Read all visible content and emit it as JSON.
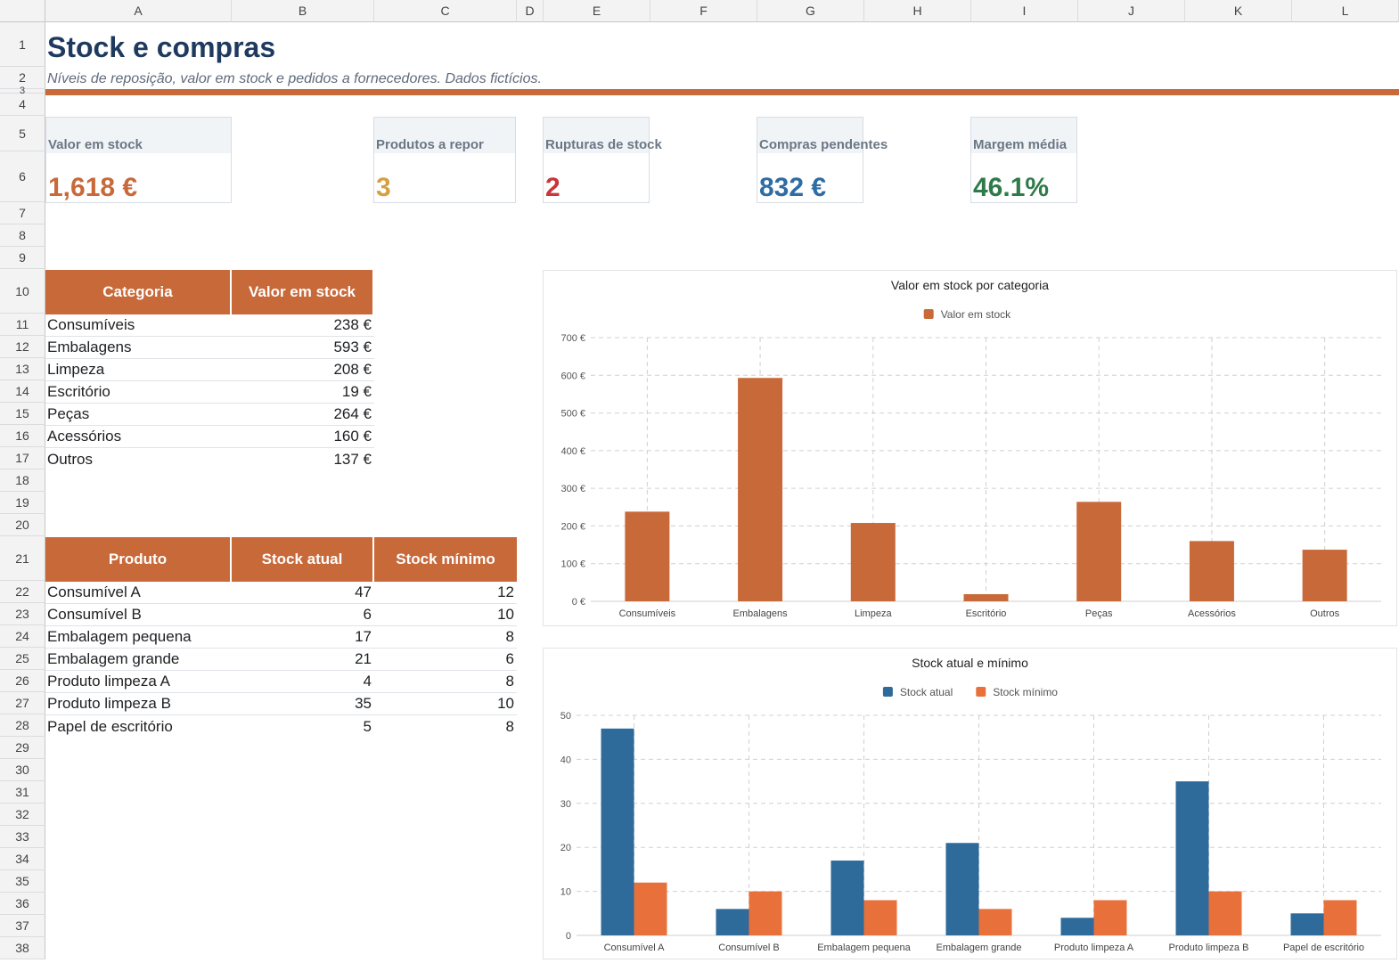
{
  "columns": [
    "A",
    "B",
    "C",
    "D",
    "E",
    "F",
    "G",
    "H",
    "I",
    "J",
    "K",
    "L"
  ],
  "rows": [
    "1",
    "2",
    "3",
    "4",
    "5",
    "6",
    "7",
    "8",
    "9",
    "10",
    "11",
    "12",
    "13",
    "14",
    "15",
    "16",
    "17",
    "18",
    "19",
    "20",
    "21",
    "22",
    "23",
    "24",
    "25",
    "26",
    "27",
    "28",
    "29",
    "30",
    "31",
    "32",
    "33",
    "34",
    "35",
    "36",
    "37",
    "38"
  ],
  "header": {
    "title": "Stock e compras",
    "subtitle": "Níveis de reposição, valor em stock e pedidos a fornecedores. Dados fictícios."
  },
  "kpis": [
    {
      "label": "Valor em stock",
      "value": "1,618 €",
      "color": "#c8693a"
    },
    {
      "label": "Produtos a repor",
      "value": "3",
      "color": "#d4a041"
    },
    {
      "label": "Rupturas de stock",
      "value": "2",
      "color": "#c9353a"
    },
    {
      "label": "Compras pendentes",
      "value": "832 €",
      "color": "#2e6ca4"
    },
    {
      "label": "Margem média",
      "value": "46.1%",
      "color": "#2f7a4a"
    }
  ],
  "category_table": {
    "headers": [
      "Categoria",
      "Valor em stock"
    ],
    "rows": [
      [
        "Consumíveis",
        "238 €"
      ],
      [
        "Embalagens",
        "593 €"
      ],
      [
        "Limpeza",
        "208 €"
      ],
      [
        "Escritório",
        "19 €"
      ],
      [
        "Peças",
        "264 €"
      ],
      [
        "Acessórios",
        "160 €"
      ],
      [
        "Outros",
        "137 €"
      ]
    ]
  },
  "product_table": {
    "headers": [
      "Produto",
      "Stock atual",
      "Stock mínimo"
    ],
    "rows": [
      [
        "Consumível A",
        "47",
        "12"
      ],
      [
        "Consumível B",
        "6",
        "10"
      ],
      [
        "Embalagem pequena",
        "17",
        "8"
      ],
      [
        "Embalagem grande",
        "21",
        "6"
      ],
      [
        "Produto limpeza A",
        "4",
        "8"
      ],
      [
        "Produto limpeza B",
        "35",
        "10"
      ],
      [
        "Papel de escritório",
        "5",
        "8"
      ]
    ]
  },
  "chart_data": [
    {
      "type": "bar",
      "title": "Valor em stock por categoria",
      "categories": [
        "Consumíveis",
        "Embalagens",
        "Limpeza",
        "Escritório",
        "Peças",
        "Acessórios",
        "Outros"
      ],
      "series": [
        {
          "name": "Valor em stock",
          "values": [
            238,
            593,
            208,
            19,
            264,
            160,
            137
          ],
          "color": "#c8693a"
        }
      ],
      "ylim": [
        0,
        700
      ],
      "yticks": [
        0,
        100,
        200,
        300,
        400,
        500,
        600,
        700
      ],
      "ytick_labels": [
        "0 €",
        "100 €",
        "200 €",
        "300 €",
        "400 €",
        "500 €",
        "600 €",
        "700 €"
      ],
      "legend": "top",
      "grid": true
    },
    {
      "type": "bar",
      "title": "Stock atual e mínimo",
      "categories": [
        "Consumível A",
        "Consumível B",
        "Embalagem pequena",
        "Embalagem grande",
        "Produto limpeza A",
        "Produto limpeza B",
        "Papel de escritório"
      ],
      "series": [
        {
          "name": "Stock atual",
          "values": [
            47,
            6,
            17,
            21,
            4,
            35,
            5
          ],
          "color": "#2e6a9a"
        },
        {
          "name": "Stock mínimo",
          "values": [
            12,
            10,
            8,
            6,
            8,
            10,
            8
          ],
          "color": "#e8703a"
        }
      ],
      "ylim": [
        0,
        50
      ],
      "yticks": [
        0,
        10,
        20,
        30,
        40,
        50
      ],
      "ytick_labels": [
        "0",
        "10",
        "20",
        "30",
        "40",
        "50"
      ],
      "legend": "top",
      "grid": true
    }
  ]
}
